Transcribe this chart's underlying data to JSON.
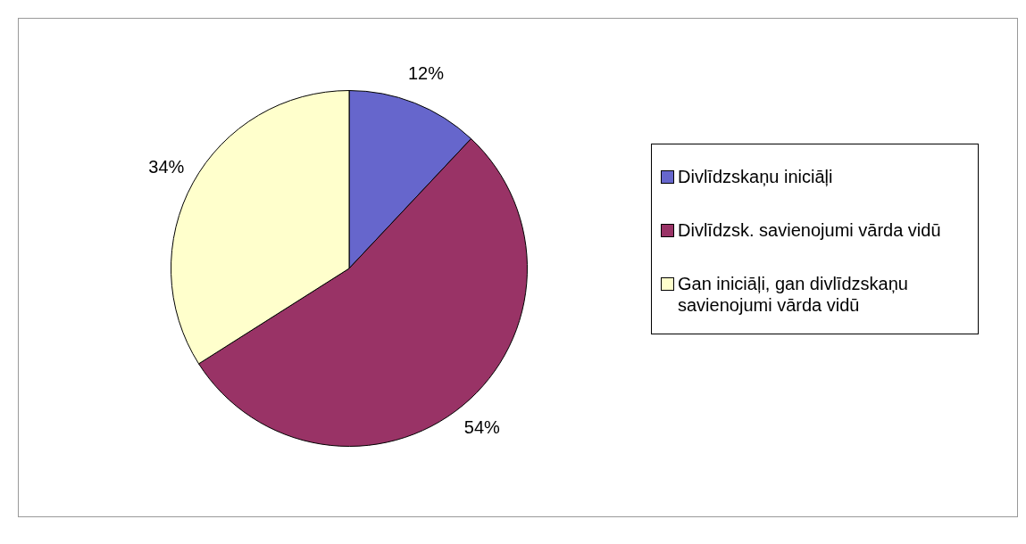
{
  "chart_data": {
    "type": "pie",
    "categories": [
      "Divlīdzskaņu iniciāļi",
      "Divlīdzsk. savienojumi vārda vidū",
      "Gan iniciāļi, gan divlīdzskaņu savienojumi vārda vidū"
    ],
    "values": [
      12,
      54,
      34
    ],
    "colors": [
      "#6666cc",
      "#993366",
      "#ffffcc"
    ],
    "value_labels": [
      "12%",
      "54%",
      "34%"
    ],
    "legend": "right"
  }
}
